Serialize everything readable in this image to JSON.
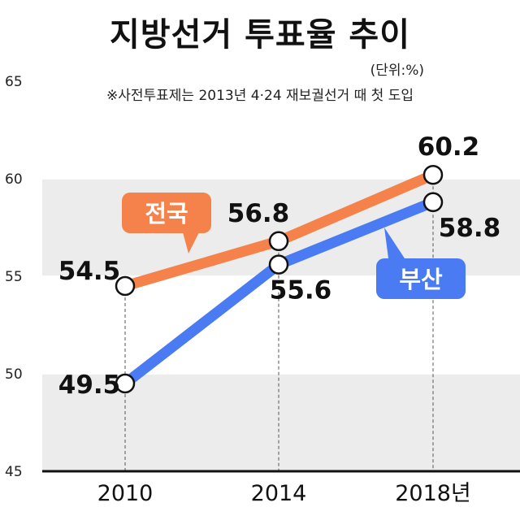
{
  "title": "지방선거 투표율 추이",
  "unit": "(단위:%)",
  "note": "※사전투표제는 2013년 4·24 재보궐선거 때 첫 도입",
  "colors": {
    "national": "#f4824a",
    "busan": "#4b7bf2",
    "band": "#ececec",
    "axis": "#111111"
  },
  "chart_data": {
    "type": "line",
    "categories": [
      "2010",
      "2014",
      "2018년"
    ],
    "series": [
      {
        "name": "전국",
        "values": [
          54.5,
          56.8,
          60.2
        ],
        "value_labels": [
          "54.5",
          "56.8",
          "60.2"
        ]
      },
      {
        "name": "부산",
        "values": [
          49.5,
          55.6,
          58.8
        ],
        "value_labels": [
          "49.5",
          "55.6",
          "58.8"
        ]
      }
    ],
    "yticks": [
      "45",
      "50",
      "55",
      "60",
      "65"
    ],
    "ylim": [
      45,
      65
    ],
    "grid": "alternating bands",
    "title": "지방선거 투표율 추이",
    "xlabel": "",
    "ylabel": ""
  }
}
